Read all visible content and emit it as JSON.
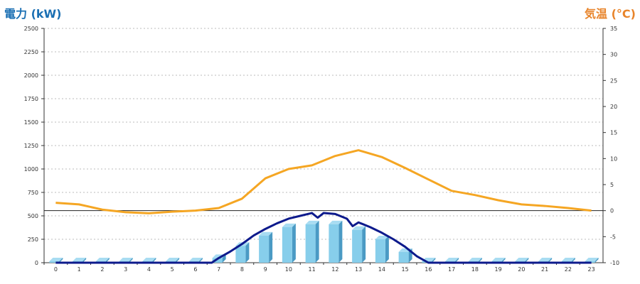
{
  "chart_data": {
    "type": "bar",
    "xlabel": "",
    "ylabel": "電力 (kW)",
    "ylabel_right": "気温 (°C)",
    "categories": [
      "0",
      "1",
      "2",
      "3",
      "4",
      "5",
      "6",
      "7",
      "8",
      "9",
      "10",
      "11",
      "12",
      "13",
      "14",
      "15",
      "16",
      "17",
      "18",
      "19",
      "20",
      "21",
      "22",
      "23"
    ],
    "ylim": [
      0,
      2500
    ],
    "ylim_right": [
      -10,
      35
    ],
    "yticks": [
      0,
      250,
      500,
      750,
      1000,
      1250,
      1500,
      1750,
      2000,
      2250,
      2500
    ],
    "yticks_right": [
      -10,
      -5,
      0,
      5,
      10,
      15,
      20,
      25,
      30,
      35
    ],
    "grid": true,
    "series": [
      {
        "kind": "bar",
        "axis": "left",
        "color": "#87ceeb",
        "values": [
          15,
          15,
          15,
          15,
          15,
          15,
          15,
          50,
          180,
          290,
          380,
          410,
          410,
          350,
          250,
          115,
          15,
          15,
          15,
          15,
          15,
          15,
          15,
          15
        ]
      },
      {
        "kind": "line",
        "axis": "right",
        "color": "#f5a623",
        "values": [
          1.5,
          1.2,
          0.2,
          -0.3,
          -0.5,
          -0.2,
          0.0,
          0.5,
          2.3,
          6.2,
          8.0,
          8.7,
          10.5,
          11.6,
          10.3,
          8.2,
          6.0,
          3.8,
          3.0,
          2.0,
          1.2,
          0.9,
          0.5,
          0.0
        ]
      },
      {
        "kind": "line",
        "axis": "left",
        "color": "#0d1a8c",
        "x": [
          0,
          1,
          2,
          3,
          4,
          5,
          6,
          6.7,
          7,
          7.5,
          8,
          8.5,
          9,
          9.5,
          10,
          10.5,
          11,
          11.25,
          11.5,
          12,
          12.5,
          12.75,
          13,
          13.5,
          14,
          14.5,
          15,
          15.5,
          16,
          17,
          18,
          19,
          20,
          21,
          22,
          23
        ],
        "values": [
          0,
          0,
          0,
          0,
          0,
          0,
          0,
          0,
          50,
          120,
          200,
          290,
          360,
          420,
          470,
          500,
          530,
          480,
          530,
          520,
          470,
          390,
          430,
          380,
          320,
          250,
          170,
          70,
          0,
          0,
          0,
          0,
          0,
          0,
          0,
          0
        ]
      }
    ]
  }
}
